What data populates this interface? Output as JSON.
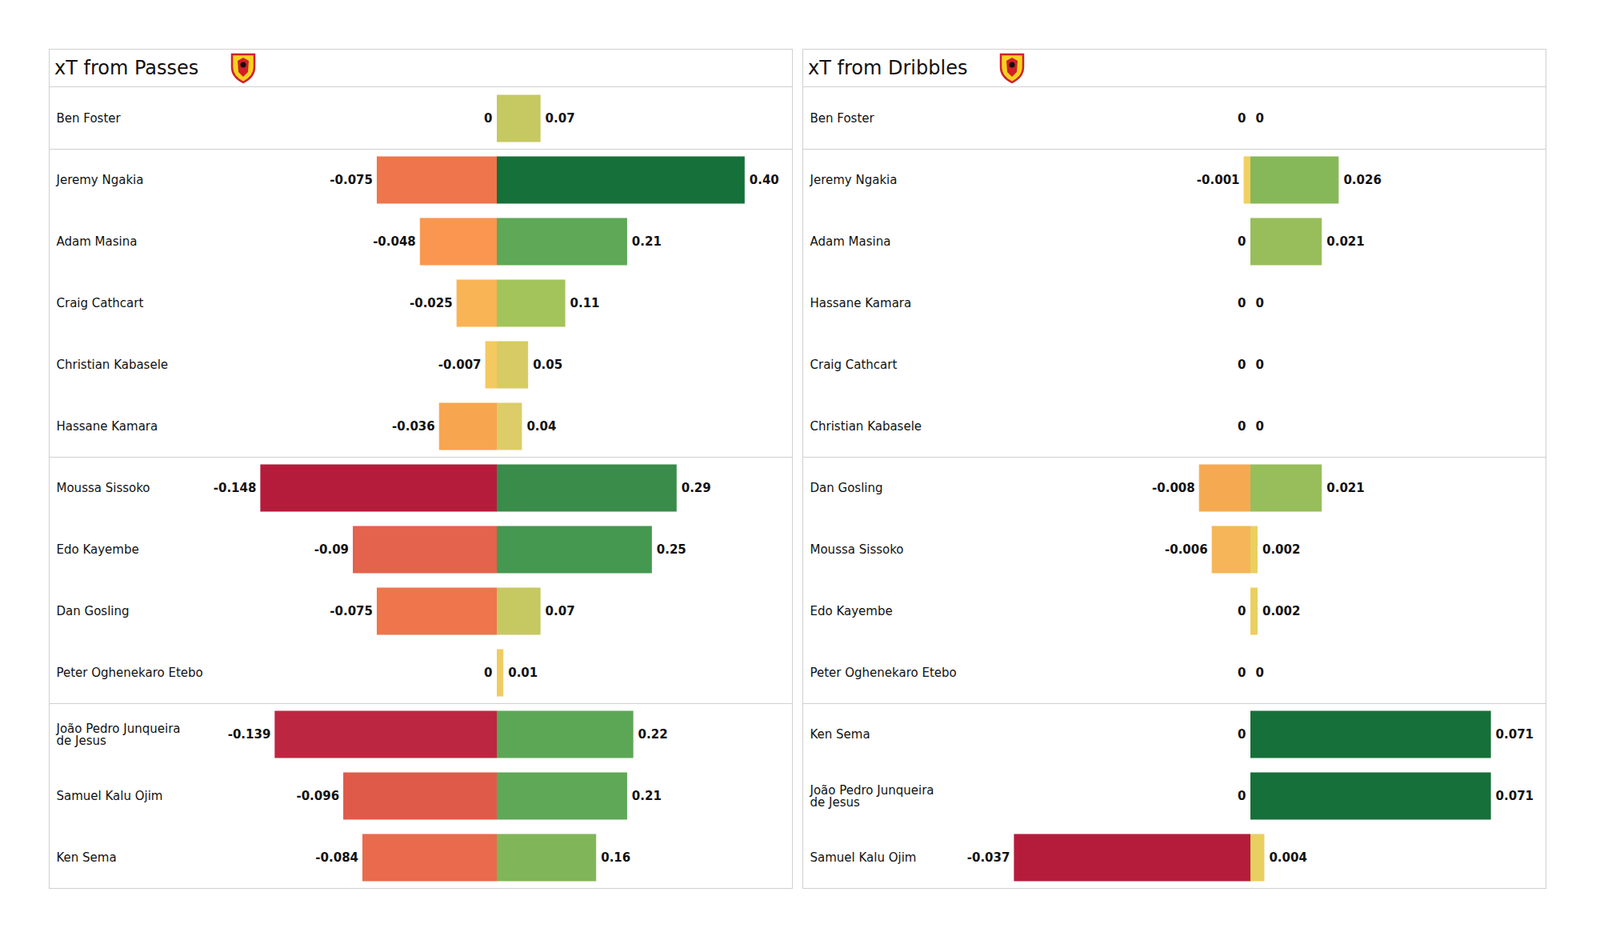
{
  "chart_data": [
    {
      "type": "bar",
      "title": "xT from Passes",
      "orientation": "horizontal",
      "data_labels": true,
      "tick_labels": "y",
      "categories": [
        "Ben Foster",
        "Jeremy Ngakia",
        "Adam Masina",
        "Craig Cathcart",
        "Christian Kabasele",
        "Hassane Kamara",
        "Moussa Sissoko",
        "Edo Kayembe",
        "Dan Gosling",
        "Peter Oghenekaro Etebo",
        "João Pedro Junqueira de Jesus",
        "Samuel Kalu Ojim",
        "Ken Sema"
      ],
      "groups": [
        1,
        5,
        4,
        3
      ],
      "series": [
        {
          "xlim": [
            -0.16,
            0
          ],
          "values": [
            0,
            -0.075,
            -0.048,
            -0.025,
            -0.007,
            -0.036,
            -0.148,
            -0.09,
            -0.075,
            0,
            -0.139,
            -0.096,
            -0.084
          ],
          "value_labels": [
            "0",
            "-0.075",
            "-0.048",
            "-0.025",
            "-0.007",
            "-0.036",
            "-0.148",
            "-0.09",
            "-0.075",
            "0",
            "-0.139",
            "-0.096",
            "-0.084"
          ],
          "colors": [
            "#f5d06a",
            "#ee754c",
            "#fa9650",
            "#f8b455",
            "#f4c95f",
            "#f7a54f",
            "#b51c3c",
            "#e3634c",
            "#ee754c",
            "#f5d06a",
            "#bd2640",
            "#e05a4a",
            "#e96a4c"
          ]
        },
        {
          "xlim": [
            0,
            0.41
          ],
          "values": [
            0.07,
            0.4,
            0.21,
            0.11,
            0.05,
            0.04,
            0.29,
            0.25,
            0.07,
            0.01,
            0.22,
            0.21,
            0.16
          ],
          "value_labels": [
            "0.07",
            "0.40",
            "0.21",
            "0.11",
            "0.05",
            "0.04",
            "0.29",
            "0.25",
            "0.07",
            "0.01",
            "0.22",
            "0.21",
            "0.16"
          ],
          "colors": [
            "#c6c862",
            "#16703a",
            "#5ea857",
            "#a3c45a",
            "#d6cb64",
            "#dccd68",
            "#3a8c4a",
            "#459850",
            "#c6c862",
            "#f0cc60",
            "#5ba755",
            "#5ea857",
            "#80b55a"
          ]
        }
      ]
    },
    {
      "type": "bar",
      "title": "xT from Dribbles",
      "orientation": "horizontal",
      "data_labels": true,
      "tick_labels": "y",
      "categories": [
        "Ben Foster",
        "Jeremy Ngakia",
        "Adam Masina",
        "Hassane Kamara",
        "Craig Cathcart",
        "Christian Kabasele",
        "Dan Gosling",
        "Moussa Sissoko",
        "Edo Kayembe",
        "Peter Oghenekaro Etebo",
        "Ken Sema",
        "João Pedro Junqueira de Jesus",
        "Samuel Kalu Ojim"
      ],
      "groups": [
        1,
        5,
        4,
        3
      ],
      "series": [
        {
          "xlim": [
            -0.04,
            0
          ],
          "values": [
            0,
            -0.001,
            0,
            0,
            0,
            0,
            -0.008,
            -0.006,
            0,
            0,
            0,
            0,
            -0.037
          ],
          "value_labels": [
            "0",
            "-0.001",
            "0",
            "0",
            "0",
            "0",
            "-0.008",
            "-0.006",
            "0",
            "0",
            "0",
            "0",
            "-0.037"
          ],
          "colors": [
            "#f2cf62",
            "#f2cf62",
            "#f2cf62",
            "#f2cf62",
            "#f2cf62",
            "#f2cf62",
            "#f5aa52",
            "#f5b558",
            "#f2cf62",
            "#f2cf62",
            "#f2cf62",
            "#f2cf62",
            "#b51c3c"
          ]
        },
        {
          "xlim": [
            0,
            0.075
          ],
          "values": [
            0,
            0.026,
            0.021,
            0,
            0,
            0,
            0.021,
            0.002,
            0.002,
            0,
            0.071,
            0.071,
            0.004
          ],
          "value_labels": [
            "0",
            "0.026",
            "0.021",
            "0",
            "0",
            "0",
            "0.021",
            "0.002",
            "0.002",
            "0",
            "0.071",
            "0.071",
            "0.004"
          ],
          "colors": [
            "#f2cf62",
            "#86b85a",
            "#98bd5b",
            "#f2cf62",
            "#f2cf62",
            "#f2cf62",
            "#98bd5b",
            "#ead060",
            "#ead060",
            "#f2cf62",
            "#16703a",
            "#16703a",
            "#e8cf60"
          ]
        }
      ]
    }
  ]
}
